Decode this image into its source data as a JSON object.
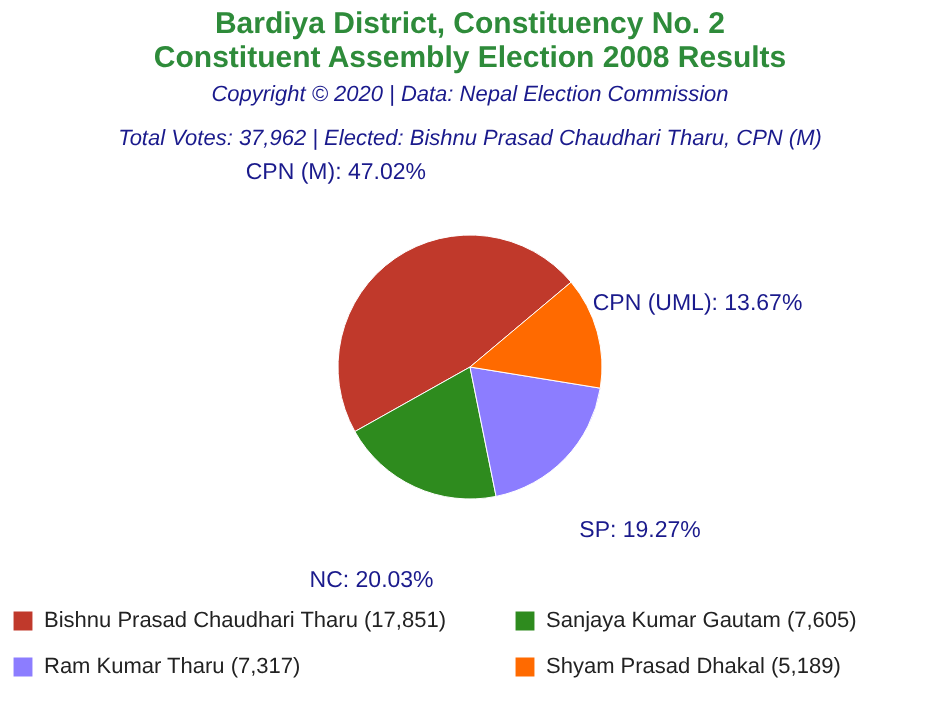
{
  "chart_data": {
    "type": "pie",
    "title": "Bardiya District, Constituency No. 2\nConstituent Assembly Election 2008 Results",
    "subtitle": "Copyright © 2020 | Data: Nepal Election Commission",
    "annotations": [
      "Total Votes: 37,962 | Elected: Bishnu Prasad Chaudhari Tharu, CPN (M)"
    ],
    "categories": [
      "Bishnu Prasad Chaudhari Tharu (17,851)",
      "Sanjaya Kumar Gautam (7,605)",
      "Ram Kumar Tharu (7,317)",
      "Shyam Prasad Dhakal (5,189)"
    ],
    "values": [
      47.02,
      20.03,
      19.27,
      13.67
    ],
    "value_labels": [
      "CPN (M): 47.02%",
      "NC: 20.03%",
      "SP: 19.27%",
      "CPN (UML): 13.67%"
    ],
    "colors": [
      "#c0392b",
      "#2e8b1e",
      "#8c7dff",
      "#ff6a00"
    ],
    "legend": "bottom"
  }
}
